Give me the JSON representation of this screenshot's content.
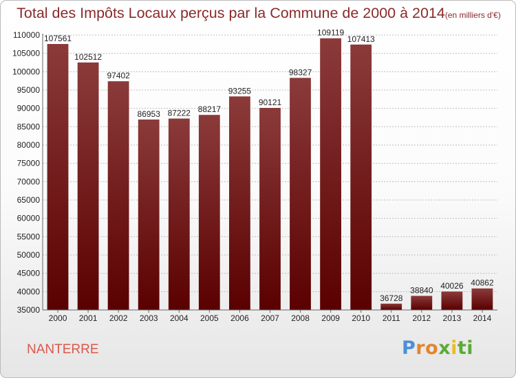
{
  "title": "Total des Impôts Locaux perçus par la Commune de 2000 à 2014",
  "unit_note": "(en milliers d'€)",
  "commune": "NANTERRE",
  "brand": [
    "P",
    "r",
    "o",
    "x",
    "i",
    "ti"
  ],
  "colors": {
    "bar_top": "#8b3a3a",
    "bar_bottom": "#5a0000",
    "grid": "#bdbdbd",
    "axis": "#666666"
  },
  "chart_data": {
    "type": "bar",
    "title": "Total des Impôts Locaux perçus par la Commune de 2000 à 2014",
    "xlabel": "",
    "ylabel": "",
    "ylim": [
      35000,
      110000
    ],
    "yticks": [
      35000,
      40000,
      45000,
      50000,
      55000,
      60000,
      65000,
      70000,
      75000,
      80000,
      85000,
      90000,
      95000,
      100000,
      105000,
      110000
    ],
    "categories": [
      "2000",
      "2001",
      "2002",
      "2003",
      "2004",
      "2005",
      "2006",
      "2007",
      "2008",
      "2009",
      "2010",
      "2011",
      "2012",
      "2013",
      "2014"
    ],
    "values": [
      107561,
      102512,
      97402,
      86953,
      87222,
      88217,
      93255,
      90121,
      98327,
      109119,
      107413,
      36728,
      38840,
      40026,
      40862
    ],
    "grid": true,
    "data_labels": true
  }
}
